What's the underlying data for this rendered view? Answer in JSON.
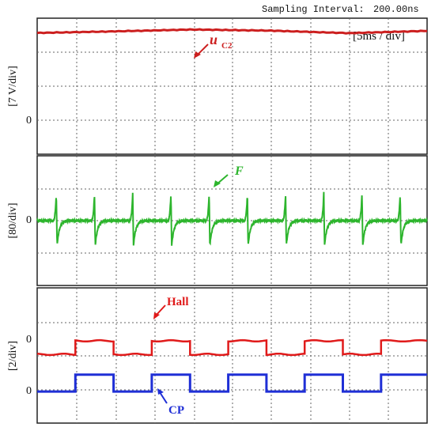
{
  "header": {
    "sampling_label": "Sampling Interval:",
    "sampling_value": "200.00ns"
  },
  "chart_data": [
    {
      "type": "line",
      "panel": "top",
      "timebase": "[5ms / div]",
      "ylabel": "[7 V/div]",
      "zero_label": "0",
      "x": [
        0,
        2,
        4,
        6,
        8,
        10
      ],
      "xlim": [
        0,
        10
      ],
      "ylim": [
        -3,
        3
      ],
      "series": [
        {
          "name": "u",
          "subscript": "C2",
          "color": "#cc1f1f",
          "values": [
            2.35,
            2.42,
            2.5,
            2.45,
            2.34,
            2.44
          ]
        }
      ]
    },
    {
      "type": "line",
      "panel": "middle",
      "ylabel": "[80/div]",
      "zero_label": "0",
      "xlim": [
        0,
        10
      ],
      "ylim": [
        -3,
        3
      ],
      "pulse_times": [
        0.49,
        1.47,
        2.45,
        3.43,
        4.41,
        5.39,
        6.37,
        7.35,
        8.33,
        9.31
      ],
      "pulse_peak": 1.3,
      "pulse_trough": -1.15,
      "series": [
        {
          "name": "F",
          "color": "#2db52d"
        }
      ]
    },
    {
      "type": "line",
      "panel": "bottom",
      "ylabel": "[2/div]",
      "zero_labels": [
        "0",
        "0"
      ],
      "xlim": [
        0,
        10
      ],
      "ylim": [
        -3,
        3
      ],
      "edges": [
        0.98,
        1.96,
        2.94,
        3.92,
        4.9,
        5.88,
        6.86,
        7.84,
        8.82
      ],
      "series": [
        {
          "name": "Hall",
          "color": "#e01a1a",
          "low": 0.05,
          "high": 0.65
        },
        {
          "name": "CP",
          "color": "#1f2fd6",
          "low": -1.6,
          "high": -0.85
        }
      ]
    }
  ]
}
